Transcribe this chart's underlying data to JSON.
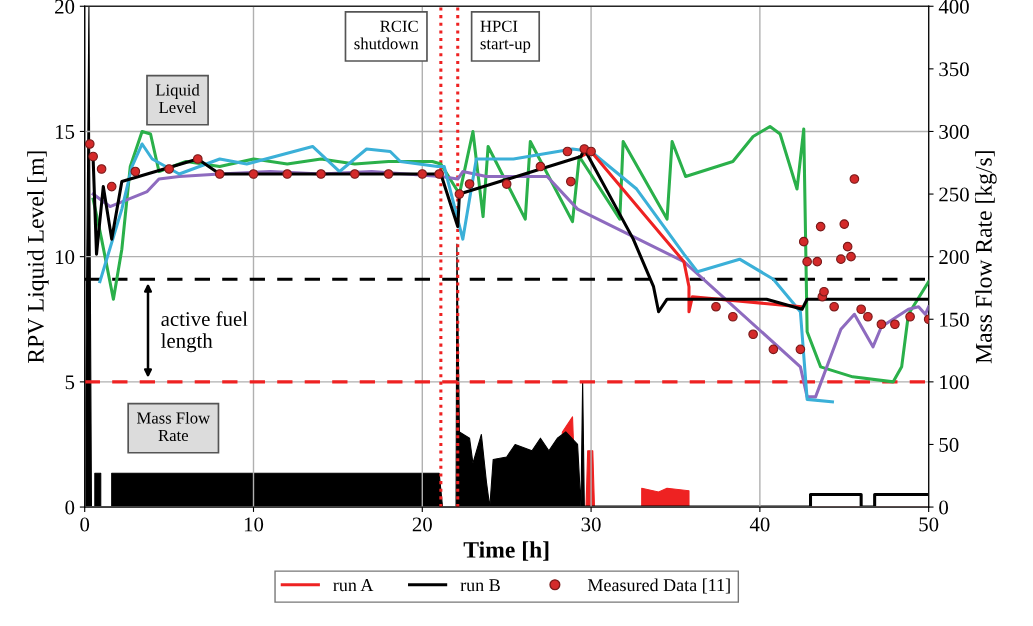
{
  "chart_data": {
    "type": "line",
    "xlabel": "Time [h]",
    "ylabel": "RPV Liquid Level [m]",
    "y2label": "Mass Flow Rate [kg/s]",
    "xlim": [
      0,
      50
    ],
    "xticks": [
      0,
      10,
      20,
      30,
      40,
      50
    ],
    "ylim": [
      0,
      20
    ],
    "yticks": [
      0,
      5,
      10,
      15,
      20
    ],
    "y2lim": [
      0,
      400
    ],
    "y2ticks": [
      0,
      50,
      100,
      150,
      200,
      250,
      300,
      350,
      400
    ],
    "grid": true,
    "legend": "bottom",
    "series": [
      {
        "type": "area",
        "axis": "y2",
        "color": "#ee2222",
        "x": [
          28.0,
          28.3,
          28.9,
          29.1,
          29.7,
          29.8,
          30.1,
          30.2,
          33.0,
          33.0,
          34.0,
          34.5,
          35.8,
          35.8,
          50.0
        ],
        "values": [
          0,
          60,
          72,
          0,
          0,
          45,
          45,
          0,
          0,
          15,
          12,
          15,
          13,
          0,
          0
        ]
      },
      {
        "type": "area",
        "axis": "y2",
        "color": "#000000",
        "x": [
          0,
          0.25,
          0.4,
          0.6,
          0.6,
          0.95,
          0.95,
          1.6,
          1.6,
          2.0,
          2.1,
          21.0,
          21.2,
          22.0,
          22.05,
          22.2,
          22.8,
          23.0,
          23.5,
          23.8,
          24.0,
          24.2,
          25.0,
          25.5,
          26.5,
          27.0,
          27.5,
          28.0,
          28.5,
          29.2,
          29.4,
          29.5,
          29.6
        ],
        "values": [
          0,
          400,
          0,
          0,
          27,
          27,
          0,
          0,
          27,
          27,
          27,
          27,
          0,
          0,
          210,
          60,
          55,
          35,
          58,
          20,
          0,
          38,
          40,
          50,
          45,
          55,
          45,
          55,
          60,
          50,
          0,
          100,
          0
        ]
      },
      {
        "type": "line",
        "axis": "y2",
        "color": "#000000",
        "x": [
          29.6,
          43.0,
          43.0,
          46.0,
          46.0,
          46.8,
          46.8,
          50.0
        ],
        "values": [
          0,
          0,
          10,
          10,
          0,
          0,
          10,
          10
        ]
      },
      {
        "color": "#2ab04a",
        "x": [
          0.5,
          1.0,
          1.7,
          2.2,
          2.7,
          3.4,
          3.9,
          4.4,
          6,
          8,
          10,
          12,
          14,
          16,
          18,
          20.6,
          21.1,
          22.2,
          23.0,
          23.6,
          23.9,
          26.1,
          26.4,
          28.9,
          29.3,
          31.7,
          31.9,
          34.5,
          34.8,
          35.6,
          38.4,
          39.6,
          40.6,
          41.2,
          42.2,
          42.6,
          42.8,
          43.6,
          45.5,
          47.9,
          48.4,
          48.8,
          50.0
        ],
        "values": [
          12.3,
          10.7,
          8.3,
          10.3,
          13.6,
          15.0,
          14.9,
          13.4,
          13.8,
          13.6,
          13.9,
          13.7,
          13.9,
          13.7,
          13.8,
          13.8,
          13.7,
          12.5,
          15.0,
          11.6,
          14.4,
          11.5,
          14.6,
          11.4,
          14.0,
          11.5,
          14.6,
          11.5,
          14.6,
          13.2,
          13.8,
          14.8,
          15.2,
          14.9,
          12.7,
          15.1,
          7.0,
          5.6,
          5.2,
          5.0,
          5.6,
          7.7,
          9.0
        ]
      },
      {
        "color": "#8e6bbf",
        "x": [
          0.5,
          1.5,
          3.7,
          4.4,
          5.6,
          8,
          11,
          14,
          17,
          21.1,
          22.1,
          22.4,
          23.8,
          27.4,
          29.2,
          30.7,
          35.5,
          42.4,
          42.8,
          43.3,
          44.8,
          45.6,
          46.7,
          47.2,
          48.8,
          49.4,
          49.8,
          50.0
        ],
        "values": [
          12.5,
          12.0,
          12.6,
          13.1,
          13.2,
          13.3,
          13.4,
          13.3,
          13.4,
          13.2,
          13.1,
          13.4,
          13.2,
          13.2,
          11.9,
          11.4,
          9.8,
          5.6,
          4.4,
          4.4,
          7.1,
          7.7,
          6.4,
          7.2,
          7.9,
          8.0,
          7.7,
          8.0
        ]
      },
      {
        "color": "#3bb0d8",
        "x": [
          0.9,
          2.2,
          2.8,
          3.4,
          4.0,
          5.6,
          8.0,
          9.6,
          13.5,
          15.1,
          16.7,
          18.1,
          18.7,
          20.9,
          21.3,
          22.4,
          23.2,
          25.4,
          28.9,
          30.0,
          32.7,
          35.5,
          36.3,
          38.8,
          40.8,
          42.4,
          42.8,
          44.3
        ],
        "values": [
          9.0,
          11.9,
          13.6,
          14.5,
          13.9,
          13.3,
          13.9,
          13.7,
          14.4,
          13.4,
          14.3,
          14.2,
          13.8,
          13.6,
          13.6,
          10.7,
          13.9,
          13.9,
          14.3,
          14.2,
          12.7,
          10.1,
          9.4,
          9.9,
          9.1,
          7.8,
          4.3,
          4.2
        ]
      },
      {
        "name": "run A",
        "color": "#ee2222",
        "x": [
          29.4,
          30.0,
          35.5,
          35.8,
          35.8,
          36.0,
          42.4
        ],
        "values": [
          14.0,
          14.2,
          9.8,
          8.8,
          7.8,
          8.4,
          8.0
        ]
      },
      {
        "name": "run B",
        "color": "#000000",
        "x": [
          0.5,
          0.7,
          1.1,
          1.6,
          2.2,
          6.7,
          8.0,
          21.1,
          22.1,
          22.2,
          29.4,
          29.6,
          32.5,
          33.7,
          34.0,
          34.5,
          40.4,
          42.5,
          42.8,
          50.0
        ],
        "values": [
          13.9,
          10.1,
          12.8,
          10.7,
          13.0,
          13.9,
          13.3,
          13.3,
          11.2,
          12.5,
          14.0,
          14.3,
          10.7,
          8.8,
          7.8,
          8.3,
          8.3,
          7.9,
          8.3,
          8.3
        ]
      },
      {
        "type": "scatter",
        "name": "Measured Data [11]",
        "color": "#d42a2a",
        "marker": "circle",
        "x": [
          0.3,
          0.5,
          1.0,
          1.6,
          3,
          5,
          6.7,
          8,
          10,
          12,
          14,
          16,
          18,
          20,
          21.0,
          22.2,
          22.8,
          25.0,
          27.0,
          28.6,
          28.8,
          29.6,
          30.0,
          37.4,
          38.4,
          39.6,
          40.8,
          42.4,
          42.6,
          42.8,
          43.4,
          43.6,
          43.7,
          43.8,
          44.4,
          44.8,
          45.0,
          45.2,
          45.4,
          45.6,
          46.0,
          46.4,
          47.2,
          48.0,
          48.9,
          50.0
        ],
        "values": [
          14.5,
          14.0,
          13.5,
          12.8,
          13.4,
          13.5,
          13.9,
          13.3,
          13.3,
          13.3,
          13.3,
          13.3,
          13.3,
          13.3,
          13.3,
          12.5,
          12.9,
          12.9,
          13.6,
          14.2,
          13.0,
          14.3,
          14.2,
          8.0,
          7.6,
          6.9,
          6.3,
          6.3,
          10.6,
          9.8,
          9.8,
          11.2,
          8.4,
          8.6,
          8.0,
          9.9,
          11.3,
          10.4,
          10.0,
          13.1,
          7.9,
          7.6,
          7.3,
          7.3,
          7.6,
          7.5
        ]
      }
    ],
    "ref_lines": [
      {
        "axis": "y",
        "value": 9.1,
        "color": "#000000",
        "line_style": "dashed"
      },
      {
        "axis": "y",
        "value": 5.0,
        "color": "#ee2222",
        "line_style": "dashed"
      },
      {
        "axis": "x",
        "value": 21.1,
        "color": "#ee2222",
        "line_style": "dotted",
        "label": "RCIC\nshutdown"
      },
      {
        "axis": "x",
        "value": 22.1,
        "color": "#ee2222",
        "line_style": "dotted",
        "label": "HPCI\nstart-up"
      }
    ],
    "annotations": [
      "Liquid\nLevel",
      "Mass Flow\nRate",
      "active fuel\nlength"
    ]
  }
}
